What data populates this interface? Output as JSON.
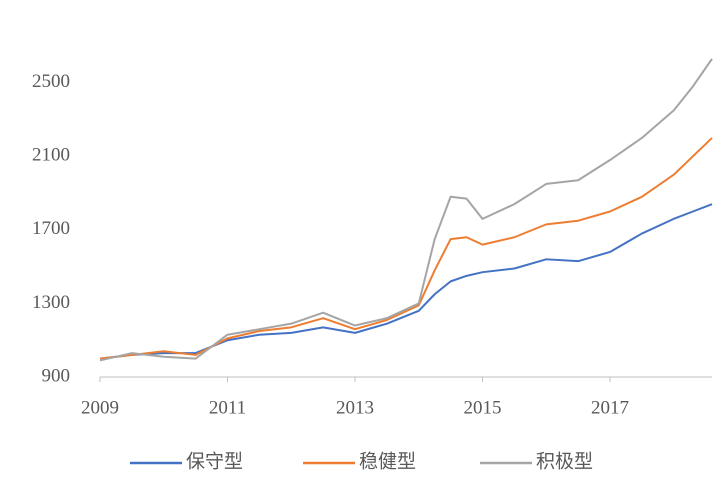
{
  "chart_data": {
    "type": "line",
    "x": [
      2009,
      2009.5,
      2010,
      2010.5,
      2011,
      2011.5,
      2012,
      2012.5,
      2013,
      2013.5,
      2014,
      2014.25,
      2014.5,
      2014.75,
      2015,
      2015.5,
      2016,
      2016.5,
      2017,
      2017.5,
      2018,
      2018.3,
      2018.6
    ],
    "series": [
      {
        "name": "保守型",
        "color": "#4472c4",
        "values": [
          1000,
          1020,
          1030,
          1030,
          1100,
          1130,
          1140,
          1170,
          1140,
          1190,
          1260,
          1350,
          1420,
          1450,
          1470,
          1490,
          1540,
          1530,
          1580,
          1680,
          1760,
          1800,
          1840
        ]
      },
      {
        "name": "稳健型",
        "color": "#ed7d31",
        "values": [
          1000,
          1020,
          1040,
          1020,
          1110,
          1150,
          1170,
          1220,
          1160,
          1210,
          1290,
          1480,
          1650,
          1660,
          1620,
          1660,
          1730,
          1750,
          1800,
          1880,
          2000,
          2100,
          2200
        ]
      },
      {
        "name": "积极型",
        "color": "#a5a5a5",
        "values": [
          990,
          1030,
          1010,
          1000,
          1130,
          1160,
          1190,
          1250,
          1180,
          1220,
          1300,
          1650,
          1880,
          1870,
          1760,
          1840,
          1950,
          1970,
          2080,
          2200,
          2350,
          2480,
          2630
        ]
      }
    ],
    "xlim": [
      2009,
      2018.6
    ],
    "xticks": [
      2009,
      2011,
      2013,
      2015,
      2017
    ],
    "ylim": [
      900,
      2700
    ],
    "yticks": [
      900,
      1300,
      1700,
      2100,
      2500
    ],
    "grid": false,
    "legend": "bottom"
  }
}
